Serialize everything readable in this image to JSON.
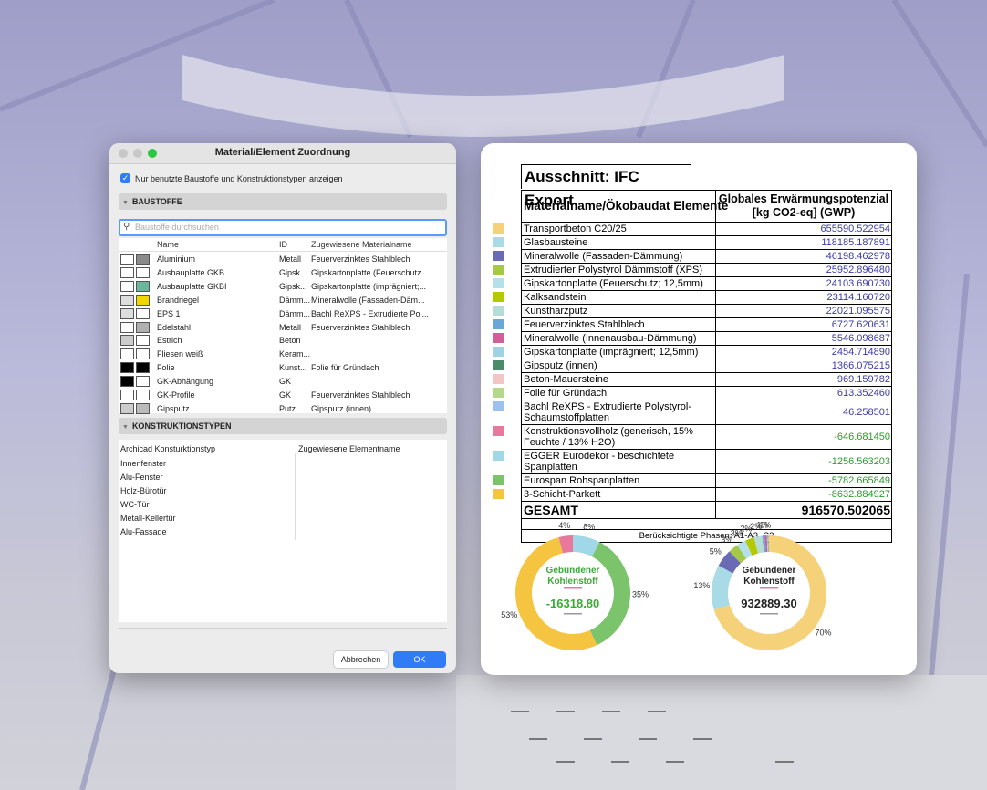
{
  "dialog": {
    "title": "Material/Element Zuordnung",
    "checkbox_label": "Nur benutzte Baustoffe und Konstruktionstypen anzeigen",
    "section_1": "BAUSTOFFE",
    "search_placeholder": "Baustoffe durchsuchen",
    "materials": {
      "columns": [
        "Name",
        "ID",
        "Zugewiesene Materialname"
      ],
      "rows": [
        {
          "name": "Aluminium",
          "id": "Metall",
          "material": "Feuerverzinktes Stahlblech",
          "swatch": [
            "#ffffff",
            "#8a8a8a"
          ]
        },
        {
          "name": "Ausbauplatte GKB",
          "id": "Gipsk...",
          "material": "Gipskartonplatte (Feuerschutz...",
          "swatch": [
            "#ffffff",
            "#ffffff"
          ]
        },
        {
          "name": "Ausbauplatte GKBI",
          "id": "Gipsk...",
          "material": "Gipskartonplatte (imprägniert;...",
          "swatch": [
            "#ffffff",
            "#6ab7a0"
          ]
        },
        {
          "name": "Brandriegel",
          "id": "Dämm...",
          "material": "Mineralwolle (Fassaden-Däm...",
          "swatch": [
            "#dddddd",
            "#f2d600"
          ]
        },
        {
          "name": "EPS 1",
          "id": "Dämm...",
          "material": "Bachl ReXPS - Extrudierte Pol...",
          "swatch": [
            "#dddddd",
            "#ffffff"
          ]
        },
        {
          "name": "Edelstahl",
          "id": "Metall",
          "material": "Feuerverzinktes Stahlblech",
          "swatch": [
            "#ffffff",
            "#b0b0b0"
          ]
        },
        {
          "name": "Estrich",
          "id": "Beton",
          "material": null,
          "swatch": [
            "#cccccc",
            "#ffffff"
          ]
        },
        {
          "name": "Fliesen weiß",
          "id": "Keram...",
          "material": null,
          "swatch": [
            "#ffffff",
            "#ffffff"
          ]
        },
        {
          "name": "Folie",
          "id": "Kunst...",
          "material": "Folie für Gründach",
          "swatch": [
            "#000000",
            "#000000"
          ]
        },
        {
          "name": "GK-Abhängung",
          "id": "GK",
          "material": null,
          "swatch": [
            "#000000",
            "#ffffff"
          ]
        },
        {
          "name": "GK-Profile",
          "id": "GK",
          "material": "Feuerverzinktes Stahlblech",
          "swatch": [
            "#ffffff",
            "#ffffff"
          ]
        },
        {
          "name": "Gipsputz",
          "id": "Putz",
          "material": "Gipsputz (innen)",
          "swatch": [
            "#cccccc",
            "#bbbbbb"
          ]
        }
      ]
    },
    "section_2": "KONSTRUKTIONSTYPEN",
    "types": {
      "columns": [
        "Archicad Konsturktionstyp",
        "Zugewiesene Elementname"
      ],
      "rows": [
        "Innenfenster",
        "Alu-Fenster",
        "Holz-Bürotür",
        "WC-Tür",
        "Metall-Kellertür",
        "Alu-Fassade"
      ]
    },
    "buttons": {
      "cancel": "Abbrechen",
      "ok": "OK"
    }
  },
  "ifc_export": {
    "title": "Ausschnitt: IFC Export",
    "header_1": "Materialname/Ökobaudat Elemente",
    "header_2": [
      "Globales Erwärmungspotenzial",
      "[kg CO2-eq] (GWP)"
    ],
    "rows": [
      {
        "name": "Transportbeton C20/25",
        "value": "655590.522954",
        "color": "#f5d27a"
      },
      {
        "name": "Glasbausteine",
        "value": "118185.187891",
        "color": "#a8dbe6"
      },
      {
        "name": "Mineralwolle (Fassaden-Dämmung)",
        "value": "46198.462978",
        "color": "#6b6bb5"
      },
      {
        "name": "Extrudierter Polystyrol Dämmstoff (XPS)",
        "value": "25952.896480",
        "color": "#a4c84a"
      },
      {
        "name": "Gipskartonplatte (Feuerschutz; 12,5mm)",
        "value": "24103.690730",
        "color": "#b3e0ea"
      },
      {
        "name": "Kalksandstein",
        "value": "23114.160720",
        "color": "#b5c900"
      },
      {
        "name": "Kunstharzputz",
        "value": "22021.095575",
        "color": "#b6dcd6"
      },
      {
        "name": "Feuerverzinktes Stahlblech",
        "value": "6727.620631",
        "color": "#6aa7d8"
      },
      {
        "name": "Mineralwolle (Innenausbau-Dämmung)",
        "value": "5546.098687",
        "color": "#d0609a"
      },
      {
        "name": "Gipskartonplatte (imprägniert; 12,5mm)",
        "value": "2454.714890",
        "color": "#9fd3e3"
      },
      {
        "name": "Gipsputz (innen)",
        "value": "1366.075215",
        "color": "#4b8a6a"
      },
      {
        "name": "Beton-Mauersteine",
        "value": "969.159782",
        "color": "#f3c6c6"
      },
      {
        "name": "Folie für Gründach",
        "value": "613.352460",
        "color": "#b6d88a"
      },
      {
        "name": "Bachl ReXPS - Extrudierte Polystyrol-Schaumstoffplatten",
        "value": "46.258501",
        "color": "#9cc1ee"
      },
      {
        "name": "Konstruktionsvollholz (generisch, 15% Feuchte / 13% H2O)",
        "value": "-646.681450",
        "color": "#e9799c"
      },
      {
        "name": "EGGER Eurodekor - beschichtete Spanplatten",
        "value": "-1256.563203",
        "color": "#a0d8e8"
      },
      {
        "name": "Eurospan Rohspanplatten",
        "value": "-5782.665849",
        "color": "#7cc46c"
      },
      {
        "name": "3-Schicht-Parkett",
        "value": "-8632.884927",
        "color": "#f5c542"
      }
    ],
    "total": {
      "label": "GESAMT",
      "value": "916570.502065"
    },
    "phases": "Berücksichtigte Phasen: A1-A3, C2",
    "donuts": [
      {
        "center_title": [
          "Gebundener",
          "Kohlenstoff"
        ],
        "center_value": "-16318.80",
        "labels": [
          "4%",
          "8%",
          "35%",
          "53%"
        ]
      },
      {
        "center_title": [
          "Gebundener",
          "Kohlenstoff"
        ],
        "center_value": "932889.30",
        "labels": [
          "70%",
          "13%",
          "5%",
          "3%",
          "3%",
          "2%",
          "2%",
          "1%",
          "1%",
          null,
          null,
          null,
          null,
          null
        ]
      }
    ]
  }
}
